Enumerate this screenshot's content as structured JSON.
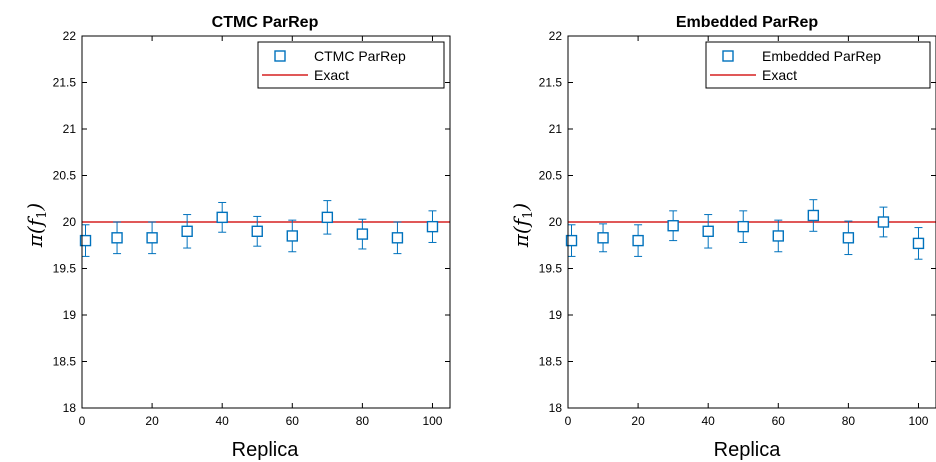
{
  "chart_data": [
    {
      "type": "scatter",
      "title": "CTMC ParRep",
      "xlabel": "Replica",
      "ylabel_text": "π(",
      "ylabel_var": "f",
      "ylabel_sub": "1",
      "ylabel_close": ")",
      "xlim": [
        0,
        105
      ],
      "ylim": [
        18,
        22
      ],
      "xticks": [
        0,
        20,
        40,
        60,
        80,
        100
      ],
      "xtick_labels": [
        "0",
        "20",
        "40",
        "60",
        "80",
        "100"
      ],
      "yticks": [
        18,
        18.5,
        19,
        19.5,
        20,
        20.5,
        21,
        21.5,
        22
      ],
      "ytick_labels": [
        "18",
        "18.5",
        "19",
        "19.5",
        "20",
        "20.5",
        "21",
        "21.5",
        "22"
      ],
      "legend_position": "top-right",
      "series": [
        {
          "name": "CTMC ParRep",
          "kind": "errorbar-squares",
          "color": "#0072BD",
          "x": [
            1,
            10,
            20,
            30,
            40,
            50,
            60,
            70,
            80,
            90,
            100
          ],
          "y": [
            19.8,
            19.83,
            19.83,
            19.9,
            20.05,
            19.9,
            19.85,
            20.05,
            19.87,
            19.83,
            19.95
          ],
          "err": [
            0.17,
            0.17,
            0.17,
            0.18,
            0.16,
            0.16,
            0.17,
            0.18,
            0.16,
            0.17,
            0.17
          ]
        },
        {
          "name": "Exact",
          "kind": "line",
          "color": "#D62020",
          "x": [
            0,
            105
          ],
          "y": [
            20,
            20
          ]
        }
      ]
    },
    {
      "type": "scatter",
      "title": "Embedded ParRep",
      "xlabel": "Replica",
      "ylabel_text": "π(",
      "ylabel_var": "f",
      "ylabel_sub": "1",
      "ylabel_close": ")",
      "xlim": [
        0,
        105
      ],
      "ylim": [
        18,
        22
      ],
      "xticks": [
        0,
        20,
        40,
        60,
        80,
        100
      ],
      "xtick_labels": [
        "0",
        "20",
        "40",
        "60",
        "80",
        "100"
      ],
      "yticks": [
        18,
        18.5,
        19,
        19.5,
        20,
        20.5,
        21,
        21.5,
        22
      ],
      "ytick_labels": [
        "18",
        "18.5",
        "19",
        "19.5",
        "20",
        "20.5",
        "21",
        "21.5",
        "22"
      ],
      "legend_position": "top-right",
      "series": [
        {
          "name": "Embedded ParRep",
          "kind": "errorbar-squares",
          "color": "#0072BD",
          "x": [
            1,
            10,
            20,
            30,
            40,
            50,
            60,
            70,
            80,
            90,
            100
          ],
          "y": [
            19.8,
            19.83,
            19.8,
            19.96,
            19.9,
            19.95,
            19.85,
            20.07,
            19.83,
            20.0,
            19.77
          ],
          "err": [
            0.17,
            0.15,
            0.17,
            0.16,
            0.18,
            0.17,
            0.17,
            0.17,
            0.18,
            0.16,
            0.17
          ]
        },
        {
          "name": "Exact",
          "kind": "line",
          "color": "#D62020",
          "x": [
            0,
            105
          ],
          "y": [
            20,
            20
          ]
        }
      ]
    }
  ]
}
